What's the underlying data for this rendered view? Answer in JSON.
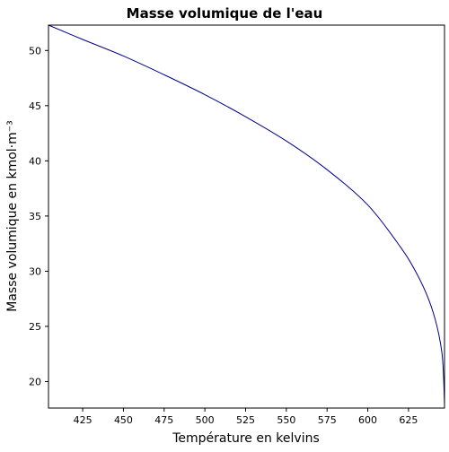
{
  "chart_data": {
    "type": "line",
    "title": "Masse volumique de l'eau",
    "xlabel": "Température en kelvins",
    "ylabel": "Masse volumique en kmol·m⁻³",
    "xlim": [
      404,
      647.1
    ],
    "ylim": [
      17.6,
      52.3
    ],
    "xticks": [
      425,
      450,
      475,
      500,
      525,
      550,
      575,
      600,
      625
    ],
    "yticks": [
      20,
      25,
      30,
      35,
      40,
      45,
      50
    ],
    "grid": false,
    "series": [
      {
        "color": "#00008b",
        "x": [
          404,
          425,
          450,
          475,
          500,
          525,
          550,
          575,
          600,
          620,
          630,
          637.5,
          642.5,
          645.5,
          646.5,
          647.1
        ],
        "y": [
          52.3,
          51.0,
          49.5,
          47.8,
          46.0,
          44.0,
          41.8,
          39.2,
          36.0,
          32.2,
          29.8,
          27.4,
          25.0,
          22.6,
          20.5,
          17.9
        ]
      }
    ]
  }
}
